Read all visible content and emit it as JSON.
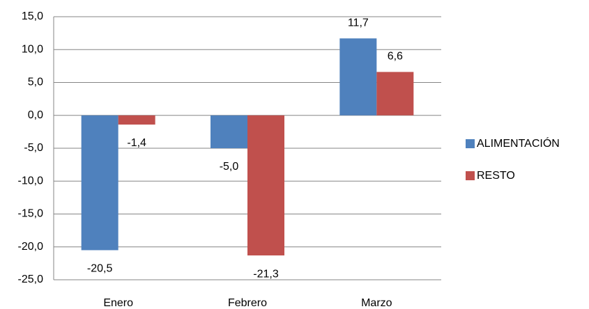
{
  "chart_data": {
    "type": "bar",
    "categories": [
      "Enero",
      "Febrero",
      "Marzo"
    ],
    "series": [
      {
        "name": "ALIMENTACIÓN",
        "color": "#4f81bd",
        "values": [
          -20.5,
          -5.0,
          11.7
        ],
        "value_labels": [
          "-20,5",
          "-5,0",
          "11,7"
        ]
      },
      {
        "name": "RESTO",
        "color": "#c0504d",
        "values": [
          -1.4,
          -21.3,
          6.6
        ],
        "value_labels": [
          "-1,4",
          "-21,3",
          "6,6"
        ]
      }
    ],
    "ylim": [
      -25,
      15
    ],
    "yticks": [
      {
        "value": -25,
        "label": "-25,0"
      },
      {
        "value": -20,
        "label": "-20,0"
      },
      {
        "value": -15,
        "label": "-15,0"
      },
      {
        "value": -10,
        "label": "-10,0"
      },
      {
        "value": -5,
        "label": "-5,0"
      },
      {
        "value": 0,
        "label": "0,0"
      },
      {
        "value": 5,
        "label": "5,0"
      },
      {
        "value": 10,
        "label": "10,0"
      },
      {
        "value": 15,
        "label": "15,0"
      }
    ],
    "grid": true,
    "legend": "right"
  }
}
